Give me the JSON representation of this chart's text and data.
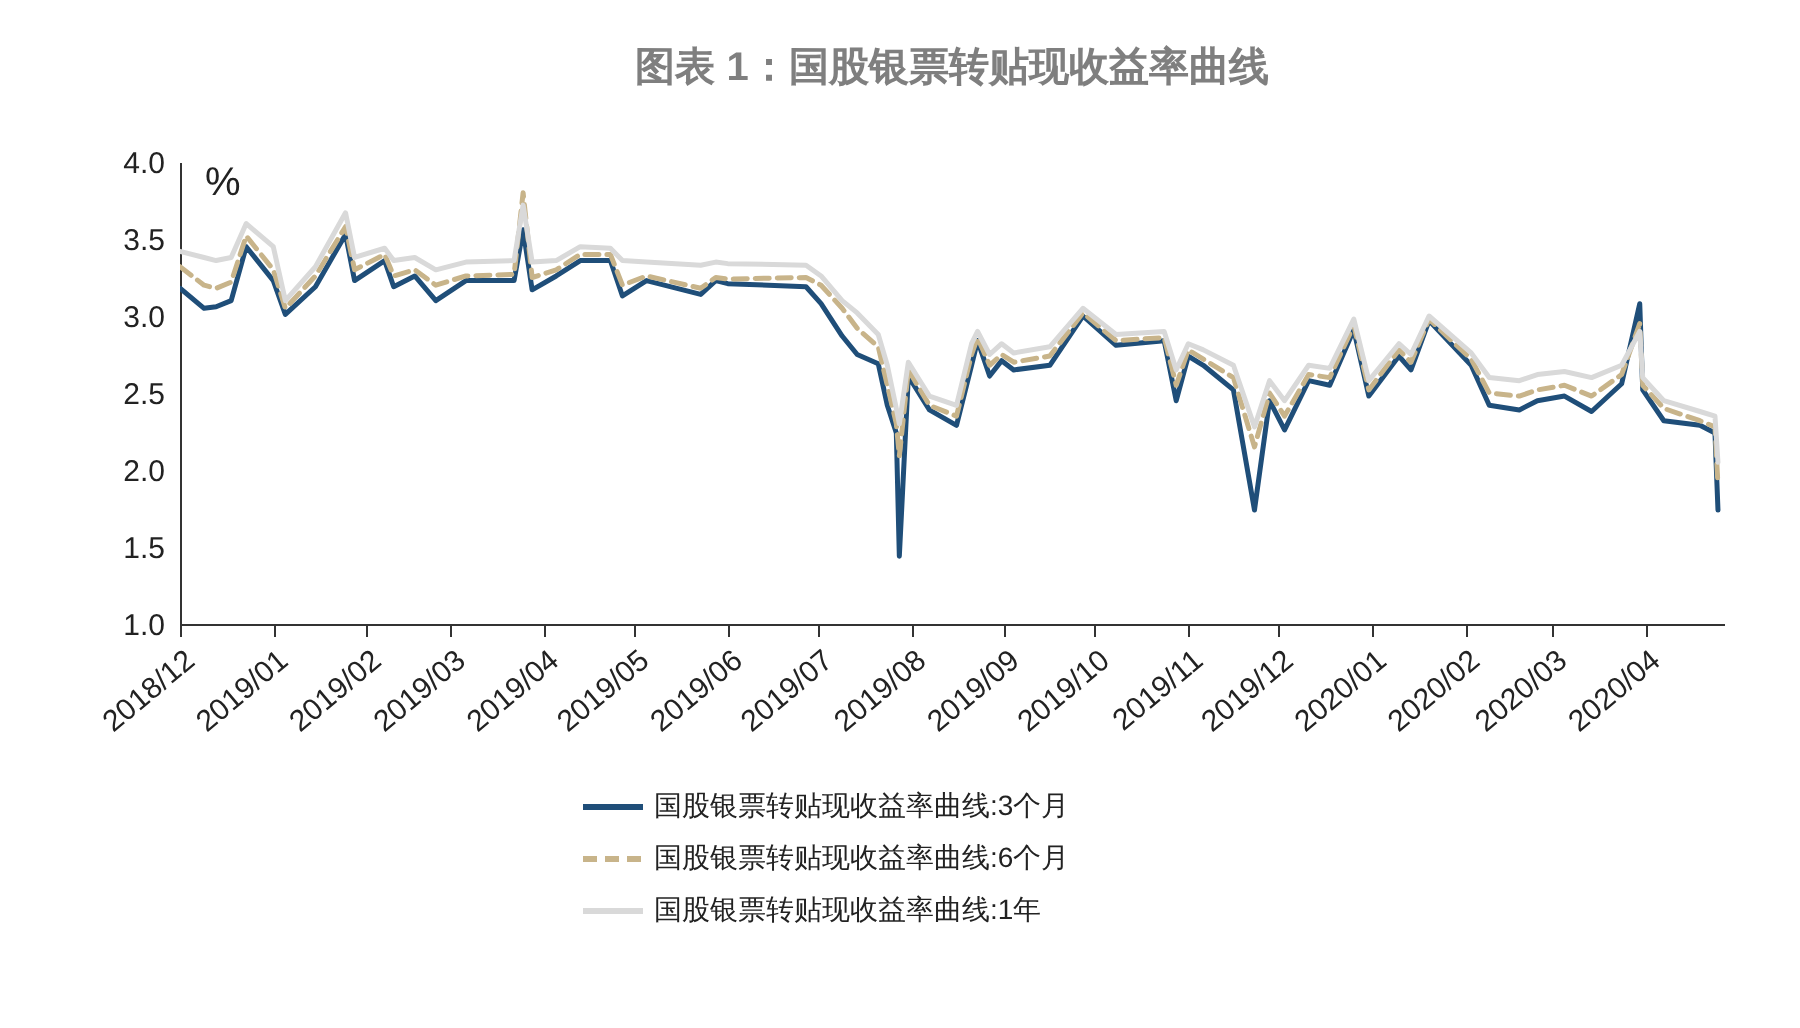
{
  "chart_data": {
    "type": "line",
    "title": "图表 1：国股银票转贴现收益率曲线",
    "ylabel": "%",
    "x": [
      "2018-12-01",
      "2018-12-09",
      "2018-12-13",
      "2018-12-18",
      "2018-12-23",
      "2019-01-01",
      "2019-01-05",
      "2019-01-15",
      "2019-01-25",
      "2019-01-28",
      "2019-02-07",
      "2019-02-10",
      "2019-02-17",
      "2019-02-24",
      "2019-03-06",
      "2019-03-22",
      "2019-03-25",
      "2019-03-28",
      "2019-04-05",
      "2019-04-13",
      "2019-04-23",
      "2019-04-27",
      "2019-05-05",
      "2019-05-23",
      "2019-05-28",
      "2019-06-01",
      "2019-06-27",
      "2019-07-02",
      "2019-07-09",
      "2019-07-14",
      "2019-07-21",
      "2019-07-24",
      "2019-07-27",
      "2019-07-28",
      "2019-07-31",
      "2019-08-07",
      "2019-08-16",
      "2019-08-21",
      "2019-08-23",
      "2019-08-27",
      "2019-08-31",
      "2019-09-04",
      "2019-09-16",
      "2019-09-27",
      "2019-10-08",
      "2019-10-24",
      "2019-10-28",
      "2019-11-01",
      "2019-11-06",
      "2019-11-16",
      "2019-11-23",
      "2019-11-28",
      "2019-12-03",
      "2019-12-11",
      "2019-12-18",
      "2019-12-26",
      "2019-12-31",
      "2020-01-10",
      "2020-01-14",
      "2020-01-20",
      "2020-02-03",
      "2020-02-09",
      "2020-02-19",
      "2020-02-25",
      "2020-03-05",
      "2020-03-14",
      "2020-03-24",
      "2020-03-30",
      "2020-03-31",
      "2020-04-07",
      "2020-04-19",
      "2020-04-24",
      "2020-04-25"
    ],
    "series": [
      {
        "name": "国股银票转贴现收益率曲线:3个月",
        "color": "#1f4e79",
        "line_style": "solid",
        "values": [
          3.18,
          3.05,
          3.06,
          3.1,
          3.45,
          3.23,
          3.01,
          3.19,
          3.53,
          3.23,
          3.36,
          3.19,
          3.26,
          3.1,
          3.23,
          3.23,
          3.56,
          3.17,
          3.26,
          3.36,
          3.36,
          3.13,
          3.23,
          3.14,
          3.23,
          3.21,
          3.19,
          3.08,
          2.87,
          2.75,
          2.69,
          2.42,
          2.24,
          1.44,
          2.61,
          2.39,
          2.29,
          2.68,
          2.84,
          2.61,
          2.71,
          2.65,
          2.68,
          3.0,
          2.81,
          2.84,
          2.45,
          2.74,
          2.68,
          2.52,
          1.74,
          2.45,
          2.26,
          2.58,
          2.55,
          2.91,
          2.48,
          2.74,
          2.65,
          2.97,
          2.68,
          2.42,
          2.39,
          2.45,
          2.48,
          2.38,
          2.56,
          3.08,
          2.52,
          2.32,
          2.29,
          2.24,
          1.74
        ]
      },
      {
        "name": "国股银票转贴现收益率曲线:6个月",
        "color": "#c8b48a",
        "line_style": "dashed",
        "values": [
          3.32,
          3.2,
          3.18,
          3.22,
          3.52,
          3.3,
          3.05,
          3.26,
          3.58,
          3.3,
          3.4,
          3.26,
          3.3,
          3.2,
          3.26,
          3.27,
          3.8,
          3.25,
          3.3,
          3.4,
          3.4,
          3.2,
          3.26,
          3.18,
          3.25,
          3.24,
          3.25,
          3.2,
          3.05,
          2.92,
          2.8,
          2.55,
          2.3,
          2.09,
          2.65,
          2.42,
          2.35,
          2.75,
          2.86,
          2.68,
          2.75,
          2.7,
          2.74,
          3.02,
          2.84,
          2.86,
          2.55,
          2.78,
          2.72,
          2.6,
          2.15,
          2.5,
          2.35,
          2.62,
          2.6,
          2.94,
          2.52,
          2.78,
          2.7,
          2.98,
          2.72,
          2.5,
          2.48,
          2.52,
          2.55,
          2.48,
          2.62,
          2.95,
          2.55,
          2.4,
          2.32,
          2.28,
          1.9
        ]
      },
      {
        "name": "国股银票转贴现收益率曲线:1年",
        "color": "#d9d9d9",
        "line_style": "solid",
        "values": [
          3.42,
          3.38,
          3.36,
          3.38,
          3.6,
          3.45,
          3.1,
          3.32,
          3.67,
          3.38,
          3.44,
          3.36,
          3.38,
          3.3,
          3.35,
          3.36,
          3.72,
          3.35,
          3.36,
          3.45,
          3.44,
          3.36,
          3.35,
          3.33,
          3.35,
          3.34,
          3.33,
          3.26,
          3.1,
          3.02,
          2.88,
          2.68,
          2.4,
          2.3,
          2.7,
          2.48,
          2.42,
          2.82,
          2.9,
          2.75,
          2.82,
          2.76,
          2.8,
          3.05,
          2.88,
          2.9,
          2.65,
          2.82,
          2.78,
          2.68,
          2.28,
          2.58,
          2.45,
          2.68,
          2.66,
          2.98,
          2.58,
          2.82,
          2.75,
          3.0,
          2.76,
          2.6,
          2.58,
          2.62,
          2.64,
          2.6,
          2.68,
          2.9,
          2.6,
          2.45,
          2.38,
          2.35,
          2.05
        ]
      }
    ],
    "xlim": [
      "2018-12-01",
      "2020-04-27"
    ],
    "xticks": [
      {
        "value": "2018-12-01",
        "label": "2018/12"
      },
      {
        "value": "2019-01-01",
        "label": "2019/01"
      },
      {
        "value": "2019-02-01",
        "label": "2019/02"
      },
      {
        "value": "2019-03-01",
        "label": "2019/03"
      },
      {
        "value": "2019-04-01",
        "label": "2019/04"
      },
      {
        "value": "2019-05-01",
        "label": "2019/05"
      },
      {
        "value": "2019-06-01",
        "label": "2019/06"
      },
      {
        "value": "2019-07-01",
        "label": "2019/07"
      },
      {
        "value": "2019-08-01",
        "label": "2019/08"
      },
      {
        "value": "2019-09-01",
        "label": "2019/09"
      },
      {
        "value": "2019-10-01",
        "label": "2019/10"
      },
      {
        "value": "2019-11-01",
        "label": "2019/11"
      },
      {
        "value": "2019-12-01",
        "label": "2019/12"
      },
      {
        "value": "2020-01-01",
        "label": "2020/01"
      },
      {
        "value": "2020-02-01",
        "label": "2020/02"
      },
      {
        "value": "2020-03-01",
        "label": "2020/03"
      },
      {
        "value": "2020-04-01",
        "label": "2020/04"
      }
    ],
    "ylim": [
      1.0,
      4.0
    ],
    "yticks": [
      {
        "value": 1.0,
        "label": "1.0"
      },
      {
        "value": 1.5,
        "label": "1.5"
      },
      {
        "value": 2.0,
        "label": "2.0"
      },
      {
        "value": 2.5,
        "label": "2.5"
      },
      {
        "value": 3.0,
        "label": "3.0"
      },
      {
        "value": 3.5,
        "label": "3.5"
      },
      {
        "value": 4.0,
        "label": "4.0"
      }
    ],
    "grid": false,
    "legend": "bottom"
  }
}
